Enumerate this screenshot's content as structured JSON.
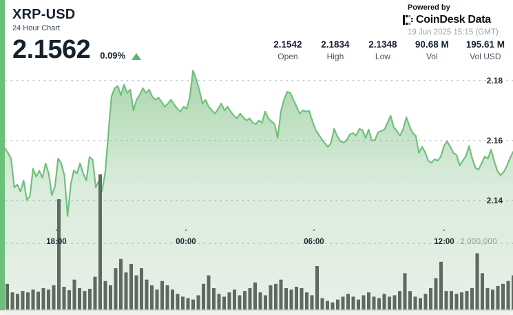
{
  "header": {
    "symbol": "XRP-USD",
    "subtitle": "24 Hour Chart",
    "price": "2.1562",
    "change_percent": "0.09%",
    "change_direction": "up",
    "powered_by": "Powered by",
    "provider_name": "CoinDesk",
    "provider_suffix": "Data",
    "timestamp": "19 Jun 2025 15:15 (GMT)"
  },
  "stats": [
    {
      "value": "2.1542",
      "label": "Open"
    },
    {
      "value": "2.1834",
      "label": "High"
    },
    {
      "value": "2.1348",
      "label": "Low"
    },
    {
      "value": "90.68 M",
      "label": "Vol"
    },
    {
      "value": "195.61 M",
      "label": "Vol USD"
    }
  ],
  "axes": {
    "y_ticks": [
      "2.18",
      "2.16",
      "2.14"
    ],
    "x_ticks": [
      "18:00",
      "00:00",
      "06:00",
      "12:00"
    ],
    "volume_tick": "2,000,000"
  },
  "colors": {
    "line": "#6fc07a",
    "fill_top": "#9ccf9f",
    "fill_mid": "#cfe6d1",
    "fill_bottom": "#e7efe7",
    "volume_bar": "#5e6a5f",
    "accent_green": "#55b96d",
    "navy": "#16212e",
    "grid": "#a9b2b7"
  },
  "chart_data": {
    "type": "area+bar",
    "title": "XRP-USD 24 Hour Chart",
    "open": 2.1542,
    "high": 2.1834,
    "low": 2.1348,
    "last": 2.1562,
    "volume": "90.68 M",
    "volume_usd": "195.61 M",
    "y_axis_ticks": [
      2.18,
      2.16,
      2.14
    ],
    "x_axis_ticks": [
      "18:00",
      "00:00",
      "06:00",
      "12:00"
    ],
    "volume_gridline": 2000000,
    "ylim": [
      2.131,
      2.187
    ],
    "legend": "none",
    "prices": [
      2.1575,
      2.1559,
      2.154,
      2.1444,
      2.1453,
      2.143,
      2.1467,
      2.1402,
      2.1414,
      2.1506,
      2.148,
      2.1499,
      2.1476,
      2.1524,
      2.149,
      2.1418,
      2.1448,
      2.154,
      2.1524,
      2.1483,
      2.1348,
      2.1453,
      2.1501,
      2.149,
      2.1524,
      2.149,
      2.1467,
      2.1545,
      2.1536,
      2.1444,
      2.1467,
      2.1432,
      2.1494,
      2.1621,
      2.1747,
      2.1775,
      2.1782,
      2.1752,
      2.1786,
      2.1759,
      2.177,
      2.1701,
      2.1736,
      2.1752,
      2.1775,
      2.1759,
      2.177,
      2.1747,
      2.1736,
      2.1743,
      2.1729,
      2.1713,
      2.1724,
      2.1736,
      2.172,
      2.1706,
      2.1697,
      2.1713,
      2.1706,
      2.1747,
      2.1834,
      2.1805,
      2.177,
      2.1724,
      2.1736,
      2.1713,
      2.1701,
      2.169,
      2.1706,
      2.1724,
      2.1701,
      2.1713,
      2.1697,
      2.1683,
      2.1674,
      2.169,
      2.1678,
      2.1667,
      2.1674,
      2.166,
      2.1655,
      2.1667,
      2.166,
      2.1697,
      2.1674,
      2.1664,
      2.1655,
      2.1609,
      2.1697,
      2.1736,
      2.1763,
      2.1759,
      2.1736,
      2.1713,
      2.169,
      2.1701,
      2.1697,
      2.1699,
      2.1667,
      2.1637,
      2.1621,
      2.1605,
      2.1591,
      2.1579,
      2.1593,
      2.1639,
      2.1614,
      2.1598,
      2.1593,
      2.1602,
      2.1621,
      2.1625,
      2.1616,
      2.1639,
      2.1635,
      2.1609,
      2.1637,
      2.16,
      2.1602,
      2.1628,
      2.1632,
      2.1637,
      2.166,
      2.1683,
      2.1644,
      2.1632,
      2.1616,
      2.1639,
      2.1678,
      2.1648,
      2.1625,
      2.1616,
      2.1559,
      2.1579,
      2.1561,
      2.1533,
      2.1526,
      2.1538,
      2.1533,
      2.1547,
      2.1582,
      2.1598,
      2.1579,
      2.1559,
      2.1552,
      2.1517,
      2.1533,
      2.1549,
      2.1582,
      2.154,
      2.151,
      2.1503,
      2.1524,
      2.1547,
      2.154,
      2.157,
      2.1531,
      2.1499,
      2.1485,
      2.1494,
      2.1515,
      2.154,
      2.1562
    ],
    "volumes": [
      774000,
      516000,
      473000,
      559000,
      516000,
      602000,
      538000,
      645000,
      602000,
      731000,
      3333000,
      688000,
      581000,
      903000,
      645000,
      559000,
      624000,
      989000,
      4086000,
      860000,
      731000,
      1247000,
      1527000,
      1118000,
      1376000,
      1032000,
      1247000,
      903000,
      731000,
      602000,
      860000,
      731000,
      602000,
      473000,
      387000,
      344000,
      301000,
      430000,
      774000,
      1032000,
      645000,
      473000,
      387000,
      516000,
      602000,
      430000,
      559000,
      645000,
      817000,
      516000,
      430000,
      731000,
      774000,
      903000,
      645000,
      602000,
      688000,
      645000,
      516000,
      430000,
      1312000,
      344000,
      258000,
      215000,
      301000,
      387000,
      473000,
      387000,
      301000,
      430000,
      516000,
      387000,
      344000,
      473000,
      387000,
      430000,
      559000,
      1097000,
      559000,
      387000,
      344000,
      473000,
      645000,
      946000,
      1441000,
      559000,
      559000,
      473000,
      516000,
      559000,
      645000,
      1699000,
      1097000,
      645000,
      602000,
      710000,
      774000,
      860000,
      1032000
    ]
  }
}
